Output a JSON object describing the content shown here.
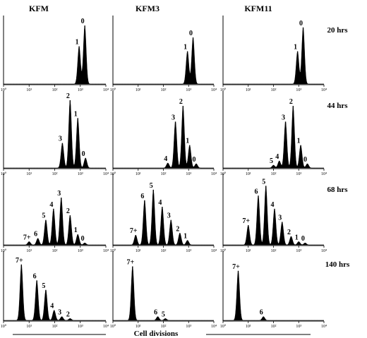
{
  "chart_data": {
    "type": "histogram",
    "title": "",
    "xlabel": "Cell divisions",
    "ylabel": "",
    "x_scale": "log",
    "xlim": [
      1,
      10000
    ],
    "x_tick_labels": [
      "10⁰",
      "10¹",
      "10²",
      "10³",
      "10⁴"
    ],
    "x_ticks": [
      1,
      10,
      100,
      1000,
      10000
    ],
    "columns": [
      "KFM",
      "KFM3",
      "KFM11"
    ],
    "rows": [
      "20 hrs",
      "44 hrs",
      "68 hrs",
      "140 hrs"
    ],
    "panels": [
      {
        "column": "KFM",
        "row": "20 hrs",
        "peaks": [
          {
            "label": "1",
            "x": 900,
            "height": 0.6
          },
          {
            "label": "0",
            "x": 1500,
            "height": 0.93
          }
        ]
      },
      {
        "column": "KFM3",
        "row": "20 hrs",
        "peaks": [
          {
            "label": "1",
            "x": 900,
            "height": 0.52
          },
          {
            "label": "0",
            "x": 1500,
            "height": 0.74
          }
        ]
      },
      {
        "column": "KFM11",
        "row": "20 hrs",
        "peaks": [
          {
            "label": "1",
            "x": 900,
            "height": 0.52
          },
          {
            "label": "0",
            "x": 1500,
            "height": 0.9
          }
        ]
      },
      {
        "column": "KFM",
        "row": "44 hrs",
        "peaks": [
          {
            "label": "3",
            "x": 200,
            "height": 0.35
          },
          {
            "label": "2",
            "x": 400,
            "height": 0.95
          },
          {
            "label": "1",
            "x": 800,
            "height": 0.7
          },
          {
            "label": "0",
            "x": 1600,
            "height": 0.14
          }
        ]
      },
      {
        "column": "KFM3",
        "row": "44 hrs",
        "peaks": [
          {
            "label": "4",
            "x": 150,
            "height": 0.07
          },
          {
            "label": "3",
            "x": 300,
            "height": 0.65
          },
          {
            "label": "2",
            "x": 600,
            "height": 0.87
          },
          {
            "label": "1",
            "x": 1100,
            "height": 0.32
          },
          {
            "label": "0",
            "x": 2000,
            "height": 0.06
          }
        ]
      },
      {
        "column": "KFM11",
        "row": "44 hrs",
        "peaks": [
          {
            "label": "5",
            "x": 100,
            "height": 0.04
          },
          {
            "label": "4",
            "x": 170,
            "height": 0.1
          },
          {
            "label": "3",
            "x": 300,
            "height": 0.65
          },
          {
            "label": "2",
            "x": 600,
            "height": 0.87
          },
          {
            "label": "1",
            "x": 1200,
            "height": 0.32
          },
          {
            "label": "0",
            "x": 2200,
            "height": 0.06
          }
        ]
      },
      {
        "column": "KFM",
        "row": "68 hrs",
        "peaks": [
          {
            "label": "7+",
            "x": 10,
            "height": 0.05
          },
          {
            "label": "6",
            "x": 22,
            "height": 0.1
          },
          {
            "label": "5",
            "x": 45,
            "height": 0.38
          },
          {
            "label": "4",
            "x": 90,
            "height": 0.55
          },
          {
            "label": "3",
            "x": 180,
            "height": 0.72
          },
          {
            "label": "2",
            "x": 400,
            "height": 0.45
          },
          {
            "label": "1",
            "x": 800,
            "height": 0.16
          },
          {
            "label": "0",
            "x": 1500,
            "height": 0.03
          }
        ]
      },
      {
        "column": "KFM3",
        "row": "68 hrs",
        "peaks": [
          {
            "label": "7+",
            "x": 8,
            "height": 0.15
          },
          {
            "label": "6",
            "x": 18,
            "height": 0.68
          },
          {
            "label": "5",
            "x": 40,
            "height": 0.84
          },
          {
            "label": "4",
            "x": 90,
            "height": 0.58
          },
          {
            "label": "3",
            "x": 200,
            "height": 0.38
          },
          {
            "label": "2",
            "x": 450,
            "height": 0.18
          },
          {
            "label": "1",
            "x": 900,
            "height": 0.07
          }
        ]
      },
      {
        "column": "KFM11",
        "row": "68 hrs",
        "peaks": [
          {
            "label": "7+",
            "x": 10,
            "height": 0.3
          },
          {
            "label": "6",
            "x": 25,
            "height": 0.75
          },
          {
            "label": "5",
            "x": 50,
            "height": 0.9
          },
          {
            "label": "4",
            "x": 110,
            "height": 0.55
          },
          {
            "label": "3",
            "x": 220,
            "height": 0.35
          },
          {
            "label": "2",
            "x": 500,
            "height": 0.13
          },
          {
            "label": "1",
            "x": 1000,
            "height": 0.05
          },
          {
            "label": "0",
            "x": 1800,
            "height": 0.03
          }
        ]
      },
      {
        "column": "KFM",
        "row": "140 hrs",
        "peaks": [
          {
            "label": "7+",
            "x": 5,
            "height": 0.88
          },
          {
            "label": "6",
            "x": 20,
            "height": 0.63
          },
          {
            "label": "5",
            "x": 45,
            "height": 0.48
          },
          {
            "label": "4",
            "x": 95,
            "height": 0.16
          },
          {
            "label": "3",
            "x": 190,
            "height": 0.06
          },
          {
            "label": "2",
            "x": 400,
            "height": 0.03
          }
        ]
      },
      {
        "column": "KFM3",
        "row": "140 hrs",
        "peaks": [
          {
            "label": "7+",
            "x": 6,
            "height": 0.85
          },
          {
            "label": "6",
            "x": 60,
            "height": 0.06
          },
          {
            "label": "5",
            "x": 120,
            "height": 0.03
          }
        ]
      },
      {
        "column": "KFM11",
        "row": "140 hrs",
        "peaks": [
          {
            "label": "7+",
            "x": 4,
            "height": 0.78
          },
          {
            "label": "6",
            "x": 40,
            "height": 0.06
          }
        ]
      }
    ]
  }
}
